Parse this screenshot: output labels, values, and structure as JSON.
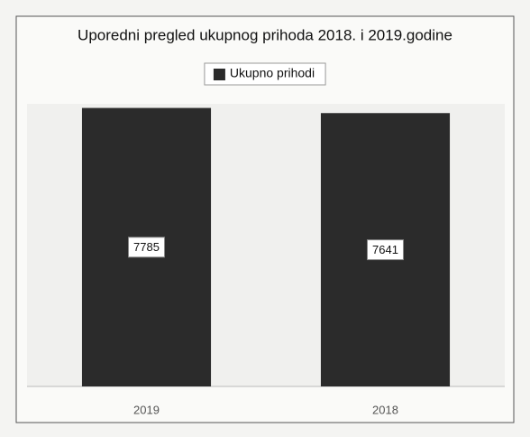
{
  "chart_data": {
    "type": "bar",
    "title": "Uporedni pregled ukupnog prihoda 2018. i 2019.godine",
    "categories": [
      "2019",
      "2018"
    ],
    "series": [
      {
        "name": "Ukupno prihodi",
        "color": "#2b2b2b",
        "values": [
          7785,
          7641
        ]
      }
    ],
    "ylim": [
      0,
      7900
    ],
    "legend": "top"
  }
}
